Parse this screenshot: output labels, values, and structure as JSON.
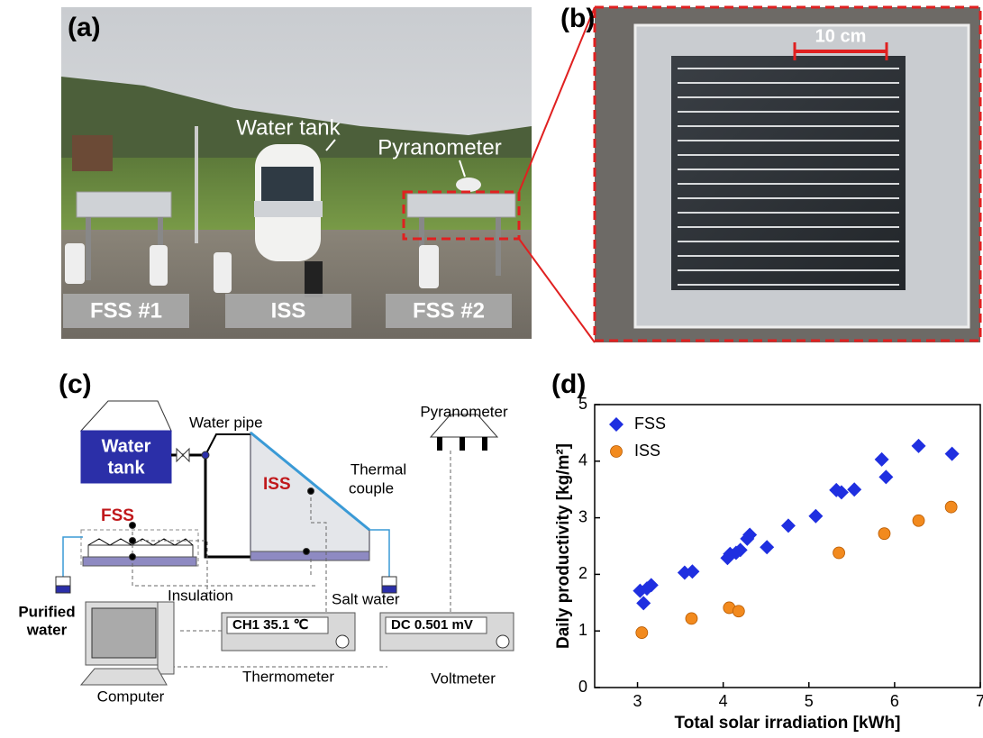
{
  "panel_a": {
    "label": "(a)",
    "water_tank": "Water tank",
    "pyranometer": "Pyranometer",
    "tags": [
      "FSS #1",
      "ISS",
      "FSS #2"
    ]
  },
  "panel_b": {
    "label": "(b)",
    "scale": "10 cm"
  },
  "panel_c": {
    "label": "(c)",
    "tank_lines": [
      "Water",
      "tank"
    ],
    "water_pipe": "Water pipe",
    "pyranometer": "Pyranometer",
    "thermal_couple_lines": [
      "Thermal",
      "couple"
    ],
    "fss": "FSS",
    "iss": "ISS",
    "insulation": "Insulation",
    "salt_water": "Salt water",
    "purified_lines": [
      "Purified",
      "water"
    ],
    "thermometer_display": "CH1  35.1 ℃",
    "voltmeter_display": "DC 0.501 mV",
    "thermometer": "Thermometer",
    "voltmeter": "Voltmeter",
    "computer": "Computer"
  },
  "panel_d": {
    "label": "(d)"
  },
  "chart_data": {
    "type": "scatter",
    "xlabel": "Total solar irradiation [kWh]",
    "ylabel": "Daily productivity [kg/m²]",
    "xlim": [
      2.5,
      7
    ],
    "ylim": [
      0,
      5
    ],
    "xticks": [
      3,
      4,
      5,
      6,
      7
    ],
    "yticks": [
      0,
      1,
      2,
      3,
      4,
      5
    ],
    "legend": "upper left",
    "series": [
      {
        "name": "FSS",
        "color": "#1f2fe0",
        "marker": "diamond",
        "x": [
          3.03,
          3.07,
          3.11,
          3.16,
          3.55,
          3.64,
          4.05,
          4.08,
          4.15,
          4.2,
          4.28,
          4.31,
          4.51,
          4.76,
          5.08,
          5.32,
          5.38,
          5.53,
          5.85,
          5.9,
          6.28,
          6.67
        ],
        "values": [
          1.71,
          1.49,
          1.75,
          1.81,
          2.03,
          2.05,
          2.29,
          2.36,
          2.38,
          2.43,
          2.63,
          2.7,
          2.48,
          2.86,
          3.03,
          3.49,
          3.45,
          3.5,
          4.03,
          3.72,
          4.27,
          4.13
        ]
      },
      {
        "name": "ISS",
        "color": "#f28a1e",
        "marker": "circle",
        "x": [
          3.05,
          3.63,
          4.07,
          4.18,
          5.35,
          5.88,
          6.28,
          6.66
        ],
        "values": [
          0.97,
          1.22,
          1.41,
          1.35,
          2.38,
          2.72,
          2.95,
          3.19
        ]
      }
    ]
  }
}
